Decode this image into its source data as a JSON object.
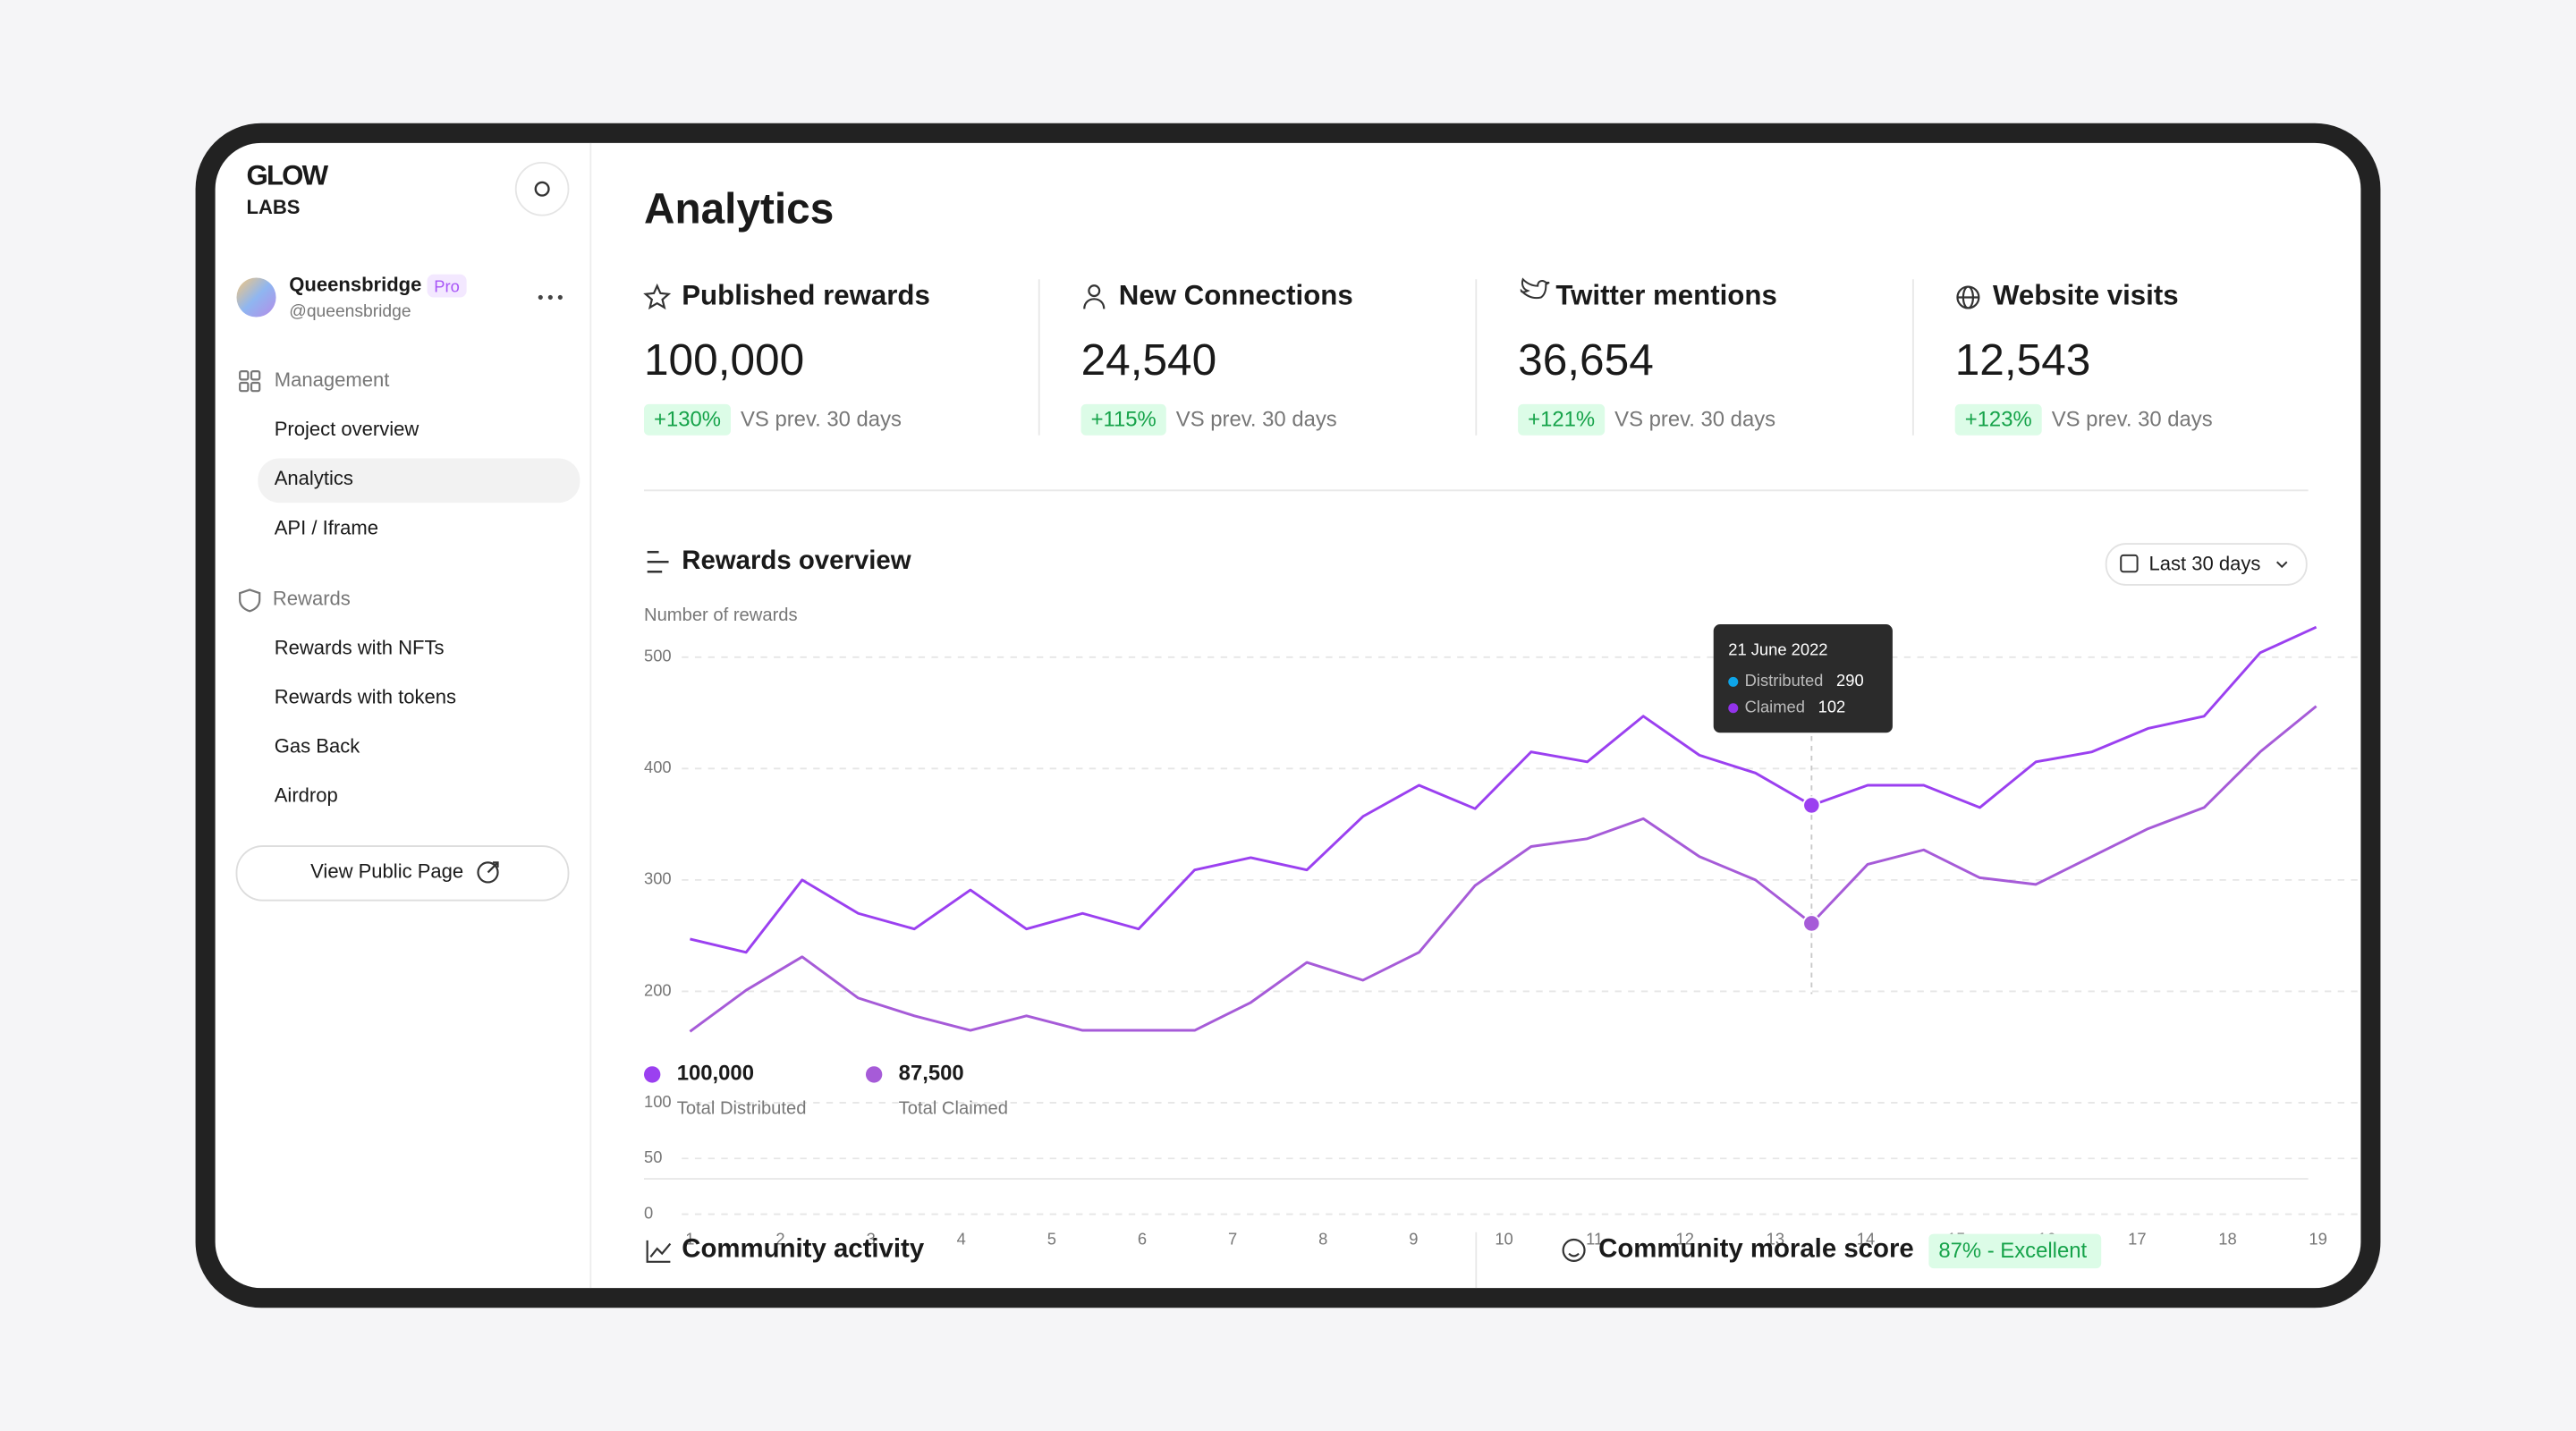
{
  "sidebar": {
    "logo": [
      "GLOW",
      "LABS"
    ],
    "user": {
      "name": "Queensbridge",
      "badge": "Pro",
      "handle": "@queensbridge"
    },
    "sections": [
      {
        "title": "Management",
        "items": [
          "Project overview",
          "Analytics",
          "API / Iframe"
        ]
      },
      {
        "title": "Rewards",
        "items": [
          "Rewards with NFTs",
          "Rewards with tokens",
          "Gas Back",
          "Airdrop"
        ]
      }
    ],
    "button": "View Public Page"
  },
  "main": {
    "title": "Analytics",
    "stats": [
      {
        "title": "Published rewards",
        "value": "100,000",
        "change": "+130%",
        "note": "VS prev. 30 days"
      },
      {
        "title": "New Connections",
        "value": "24,540",
        "change": "+115%",
        "note": "VS prev. 30 days"
      },
      {
        "title": "Twitter mentions",
        "value": "36,654",
        "change": "+121%",
        "note": "VS prev. 30 days"
      },
      {
        "title": "Website visits",
        "value": "12,543",
        "change": "+123%",
        "note": "VS prev. 30 days"
      }
    ]
  },
  "chart_data": {
    "type": "line",
    "title": "Rewards overview",
    "range_select": "Last 30 days",
    "y_label": "Number of rewards",
    "ylim": [
      0,
      500
    ],
    "yticks": [
      500,
      400,
      300,
      200,
      100,
      50,
      0
    ],
    "xlim": [
      1,
      19
    ],
    "xticks": [
      1,
      2,
      3,
      4,
      5,
      6,
      7,
      8,
      9,
      10,
      11,
      12,
      13,
      14,
      15,
      16,
      17,
      18,
      19
    ],
    "grid": true,
    "x": [
      1,
      1.62,
      2.24,
      2.86,
      3.48,
      4.1,
      4.72,
      5.34,
      5.96,
      6.58,
      7.2,
      7.82,
      8.44,
      9.06,
      9.68,
      10.3,
      10.92,
      11.54,
      12.16,
      12.78,
      13.4,
      14.02,
      14.64,
      15.26,
      15.88,
      16.5,
      17.12,
      17.74,
      18.36,
      18.98
    ],
    "series": [
      {
        "name": "Total Distributed",
        "total": "100,000",
        "color": "#9b40f0",
        "values": [
          247,
          235,
          300,
          270,
          256,
          291,
          256,
          270,
          256,
          309,
          320,
          309,
          357,
          385,
          364,
          415,
          406,
          447,
          412,
          396,
          367,
          385,
          385,
          365,
          406,
          415,
          436,
          447,
          504,
          527
        ]
      },
      {
        "name": "Total Claimed",
        "total": "87,500",
        "color": "#a65bd8",
        "values": [
          164,
          201,
          231,
          194,
          178,
          165,
          178,
          165,
          165,
          165,
          190,
          226,
          210,
          235,
          295,
          330,
          337,
          355,
          321,
          300,
          261,
          314,
          327,
          302,
          296,
          321,
          346,
          365,
          415,
          456
        ]
      }
    ],
    "tooltip": {
      "title": "21 June 2022",
      "items": [
        {
          "name": "Distributed",
          "value": 290,
          "color": "#0ea5e9"
        },
        {
          "name": "Claimed",
          "value": 102,
          "color": "#9333ea"
        }
      ]
    }
  },
  "bottom": {
    "panels": [
      {
        "title": "Community activity"
      },
      {
        "title": "Community morale score",
        "badge": "87% - Excellent"
      }
    ]
  }
}
